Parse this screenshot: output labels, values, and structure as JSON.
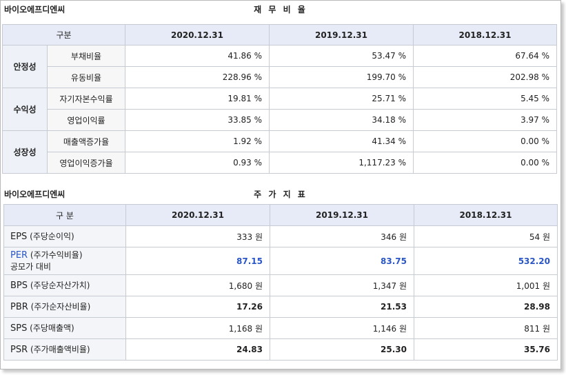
{
  "company": "바이오에프디엔씨",
  "financial": {
    "title": "재 무 비 율",
    "header": [
      "구분",
      "2020.12.31",
      "2019.12.31",
      "2018.12.31"
    ],
    "groups": [
      {
        "name": "안정성",
        "rows": [
          {
            "label": "부채비율",
            "values": [
              "41.86 %",
              "53.47 %",
              "67.64 %"
            ]
          },
          {
            "label": "유동비율",
            "values": [
              "228.96 %",
              "199.70 %",
              "202.98 %"
            ]
          }
        ]
      },
      {
        "name": "수익성",
        "rows": [
          {
            "label": "자기자본수익률",
            "values": [
              "19.81 %",
              "25.71 %",
              "5.45 %"
            ]
          },
          {
            "label": "영업이익률",
            "values": [
              "33.85 %",
              "34.18 %",
              "3.97 %"
            ]
          }
        ]
      },
      {
        "name": "성장성",
        "rows": [
          {
            "label": "매출액증가율",
            "values": [
              "1.92 %",
              "41.34 %",
              "0.00 %"
            ]
          },
          {
            "label": "영업이익증가율",
            "values": [
              "0.93 %",
              "1,117.23 %",
              "0.00 %"
            ]
          }
        ]
      }
    ]
  },
  "stock": {
    "title": "주 가 지 표",
    "header": [
      "구 분",
      "2020.12.31",
      "2019.12.31",
      "2018.12.31"
    ],
    "rows": [
      {
        "code": "EPS",
        "desc": "(주당순이익)",
        "values": [
          "333 원",
          "346 원",
          "54 원"
        ]
      },
      {
        "code": "PER",
        "desc": "(주가수익비율)",
        "sub": "공모가 대비",
        "values": [
          "87.15",
          "83.75",
          "532.20"
        ]
      },
      {
        "code": "BPS",
        "desc": "(주당순자산가치)",
        "values": [
          "1,680 원",
          "1,347 원",
          "1,001 원"
        ]
      },
      {
        "code": "PBR",
        "desc": "(주가순자산비율)",
        "values": [
          "17.26",
          "21.53",
          "28.98"
        ]
      },
      {
        "code": "SPS",
        "desc": "(주당매출액)",
        "values": [
          "1,168 원",
          "1,146 원",
          "811 원"
        ]
      },
      {
        "code": "PSR",
        "desc": "(주가매출액비율)",
        "values": [
          "24.83",
          "25.30",
          "35.76"
        ]
      }
    ]
  },
  "colors": {
    "header_bg": "#e6ebf7",
    "accent_blue": "#2a56c6",
    "border": "#c6cad3"
  }
}
